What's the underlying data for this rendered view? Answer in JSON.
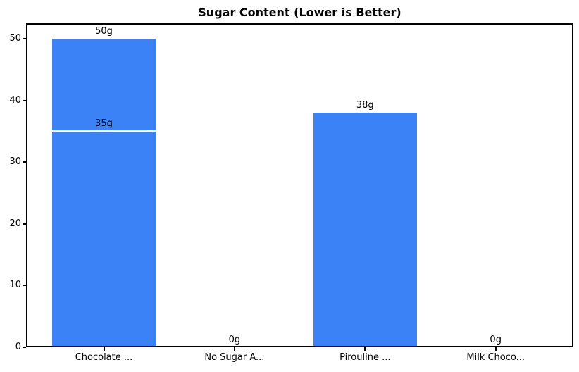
{
  "chart_data": {
    "type": "bar",
    "title": "Sugar Content (Lower is Better)",
    "categories": [
      "Chocolate ...",
      "No Sugar A...",
      "Pirouline ...",
      "Milk Choco..."
    ],
    "series": [
      {
        "name": "sugar-grams",
        "values": [
          50,
          0,
          38,
          0
        ],
        "data_labels": [
          "50g",
          "0g",
          "38g",
          "0g"
        ]
      },
      {
        "name": "sugar-grams-overlay-segment",
        "values": [
          35,
          null,
          null,
          null
        ],
        "data_labels": [
          "35g",
          null,
          null,
          null
        ]
      }
    ],
    "xlabel": "",
    "ylabel": "",
    "yticks": [
      0,
      10,
      20,
      30,
      40,
      50
    ],
    "ylim": [
      0,
      52.5
    ],
    "grid": false,
    "legend_position": "none",
    "colors": {
      "bar": "#3b82f6",
      "overlay_divider": "#ffffff",
      "text": "#000000",
      "spine": "#000000",
      "background": "#ffffff"
    }
  }
}
